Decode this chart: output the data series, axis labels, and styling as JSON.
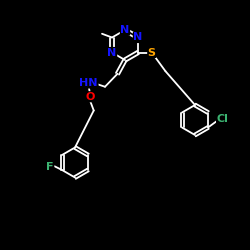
{
  "bg_color": "#000000",
  "atom_colors": {
    "N": "#1414FF",
    "S": "#FFA500",
    "O": "#FF0000",
    "F": "#3CB371",
    "Cl": "#3CB371",
    "C": "#FFFFFF",
    "H": "#FFFFFF"
  },
  "bond_color": "#FFFFFF",
  "label_fontsize": 8,
  "figsize": [
    2.5,
    2.5
  ],
  "dpi": 100
}
